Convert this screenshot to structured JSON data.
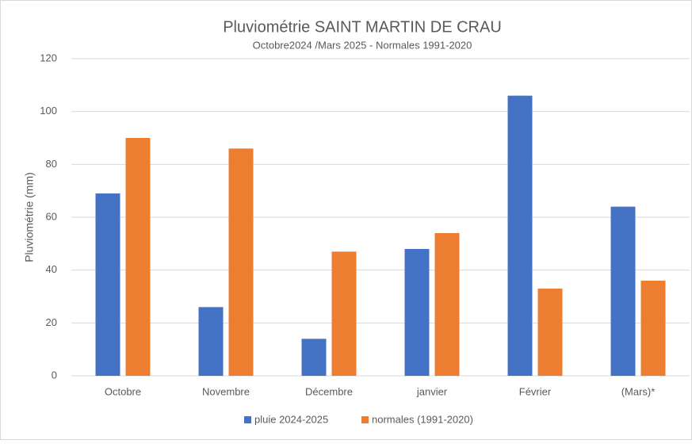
{
  "chart_data": {
    "type": "bar",
    "title": "Pluviométrie SAINT MARTIN DE CRAU",
    "subtitle": "Octobre2024 /Mars 2025 - Normales 1991-2020",
    "y_label": "Pluviométrie (mm)",
    "categories": [
      "Octobre",
      "Novembre",
      "Décembre",
      "janvier",
      "Février",
      "(Mars)*"
    ],
    "series": [
      {
        "name": "pluie 2024-2025",
        "color": "#4472c4",
        "values": [
          69,
          26,
          14,
          48,
          106,
          64
        ]
      },
      {
        "name": "normales (1991-2020)",
        "color": "#ed7d31",
        "values": [
          90,
          86,
          47,
          54,
          33,
          36
        ]
      }
    ],
    "ylim": [
      0,
      120
    ],
    "yticks": [
      0,
      20,
      40,
      60,
      80,
      100,
      120
    ],
    "grid": true,
    "legend": "bottom"
  }
}
